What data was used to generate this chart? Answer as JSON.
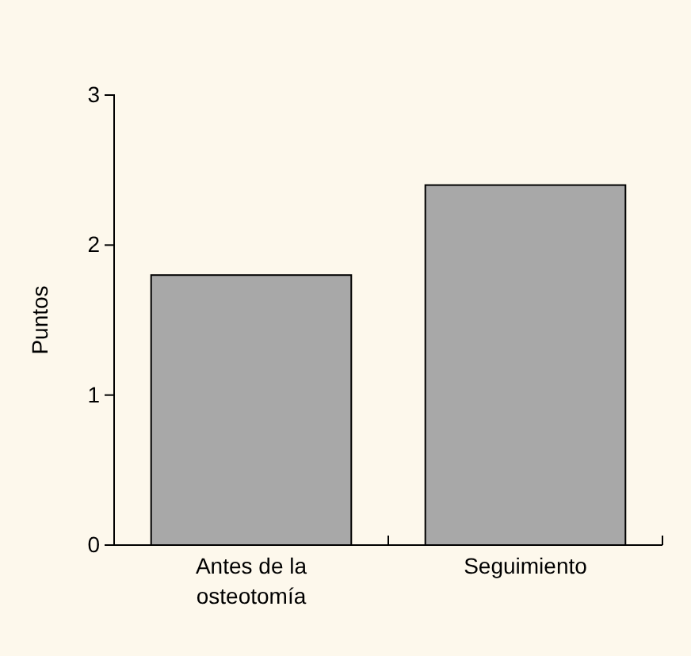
{
  "chart_data": {
    "type": "bar",
    "ylabel": "Puntos",
    "categories": [
      "Antes de la\nosteotomía",
      "Seguimiento"
    ],
    "values": [
      1.8,
      2.4
    ],
    "color": "#a8a8a8",
    "ylim": [
      0,
      3
    ],
    "yticks": [
      0,
      1,
      2,
      3
    ],
    "grid": false
  }
}
